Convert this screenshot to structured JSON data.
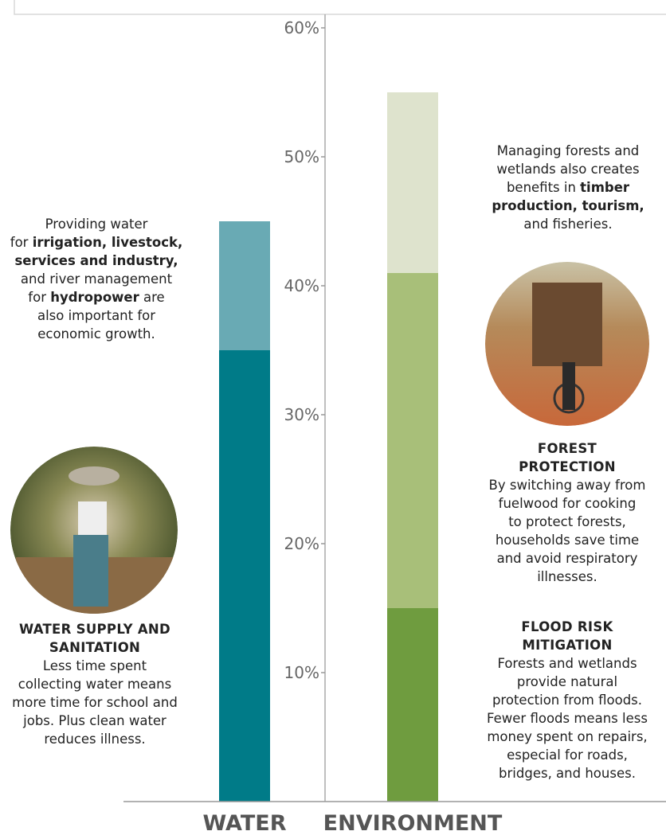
{
  "chart_data": {
    "type": "stacked_bar",
    "categories": [
      "WATER",
      "ENVIRONMENT"
    ],
    "series": [
      {
        "colors": [
          "#007b88",
          "#6f9c3f"
        ],
        "values": [
          35,
          15
        ]
      },
      {
        "colors": [
          "#69aab4",
          "#a8bf79"
        ],
        "values": [
          10,
          26
        ]
      },
      {
        "colors": [
          null,
          "#dee3cd"
        ],
        "values": [
          null,
          14
        ]
      }
    ],
    "ylim": [
      0,
      60
    ],
    "yticks": [
      {
        "value": 10,
        "label": "10%"
      },
      {
        "value": 20,
        "label": "20%"
      },
      {
        "value": 30,
        "label": "30%"
      },
      {
        "value": 40,
        "label": "40%"
      },
      {
        "value": 50,
        "label": "50%"
      },
      {
        "value": 60,
        "label": "60%"
      }
    ],
    "annotations": [
      {
        "heading": [],
        "lines": [
          [
            {
              "text": "Providing water"
            }
          ],
          [
            {
              "text": "for "
            },
            {
              "text": "irrigation, livestock,",
              "bold": true
            }
          ],
          [
            {
              "text": "services and industry,",
              "bold": true
            }
          ],
          [
            {
              "text": "and river management"
            }
          ],
          [
            {
              "text": "for "
            },
            {
              "text": "hydropower",
              "bold": true
            },
            {
              "text": " are"
            }
          ],
          [
            {
              "text": "also important for"
            }
          ],
          [
            {
              "text": "economic growth."
            }
          ]
        ]
      },
      {
        "heading": [
          "WATER SUPPLY AND",
          "SANITATION"
        ],
        "lines": [
          [
            {
              "text": "Less time spent"
            }
          ],
          [
            {
              "text": "collecting water means"
            }
          ],
          [
            {
              "text": "more time for school and"
            }
          ],
          [
            {
              "text": "jobs. Plus clean water"
            }
          ],
          [
            {
              "text": "reduces illness."
            }
          ]
        ]
      },
      {
        "heading": [],
        "lines": [
          [
            {
              "text": "Managing forests and"
            }
          ],
          [
            {
              "text": "wetlands also creates"
            }
          ],
          [
            {
              "text": "benefits in "
            },
            {
              "text": "timber",
              "bold": true
            }
          ],
          [
            {
              "text": "production, tourism,",
              "bold": true
            }
          ],
          [
            {
              "text": "and fisheries."
            }
          ]
        ]
      },
      {
        "heading": [
          "FOREST",
          "PROTECTION"
        ],
        "lines": [
          [
            {
              "text": "By switching away from"
            }
          ],
          [
            {
              "text": "fuelwood for cooking"
            }
          ],
          [
            {
              "text": "to protect forests,"
            }
          ],
          [
            {
              "text": "households save time"
            }
          ],
          [
            {
              "text": "and avoid respiratory"
            }
          ],
          [
            {
              "text": "illnesses."
            }
          ]
        ]
      },
      {
        "heading": [
          "FLOOD RISK",
          "MITIGATION"
        ],
        "lines": [
          [
            {
              "text": "Forests and wetlands"
            }
          ],
          [
            {
              "text": "provide natural"
            }
          ],
          [
            {
              "text": "protection from floods."
            }
          ],
          [
            {
              "text": "Fewer floods means less"
            }
          ],
          [
            {
              "text": "money spent on repairs,"
            }
          ],
          [
            {
              "text": "especial for roads,"
            }
          ],
          [
            {
              "text": "bridges, and houses."
            }
          ]
        ]
      }
    ]
  }
}
